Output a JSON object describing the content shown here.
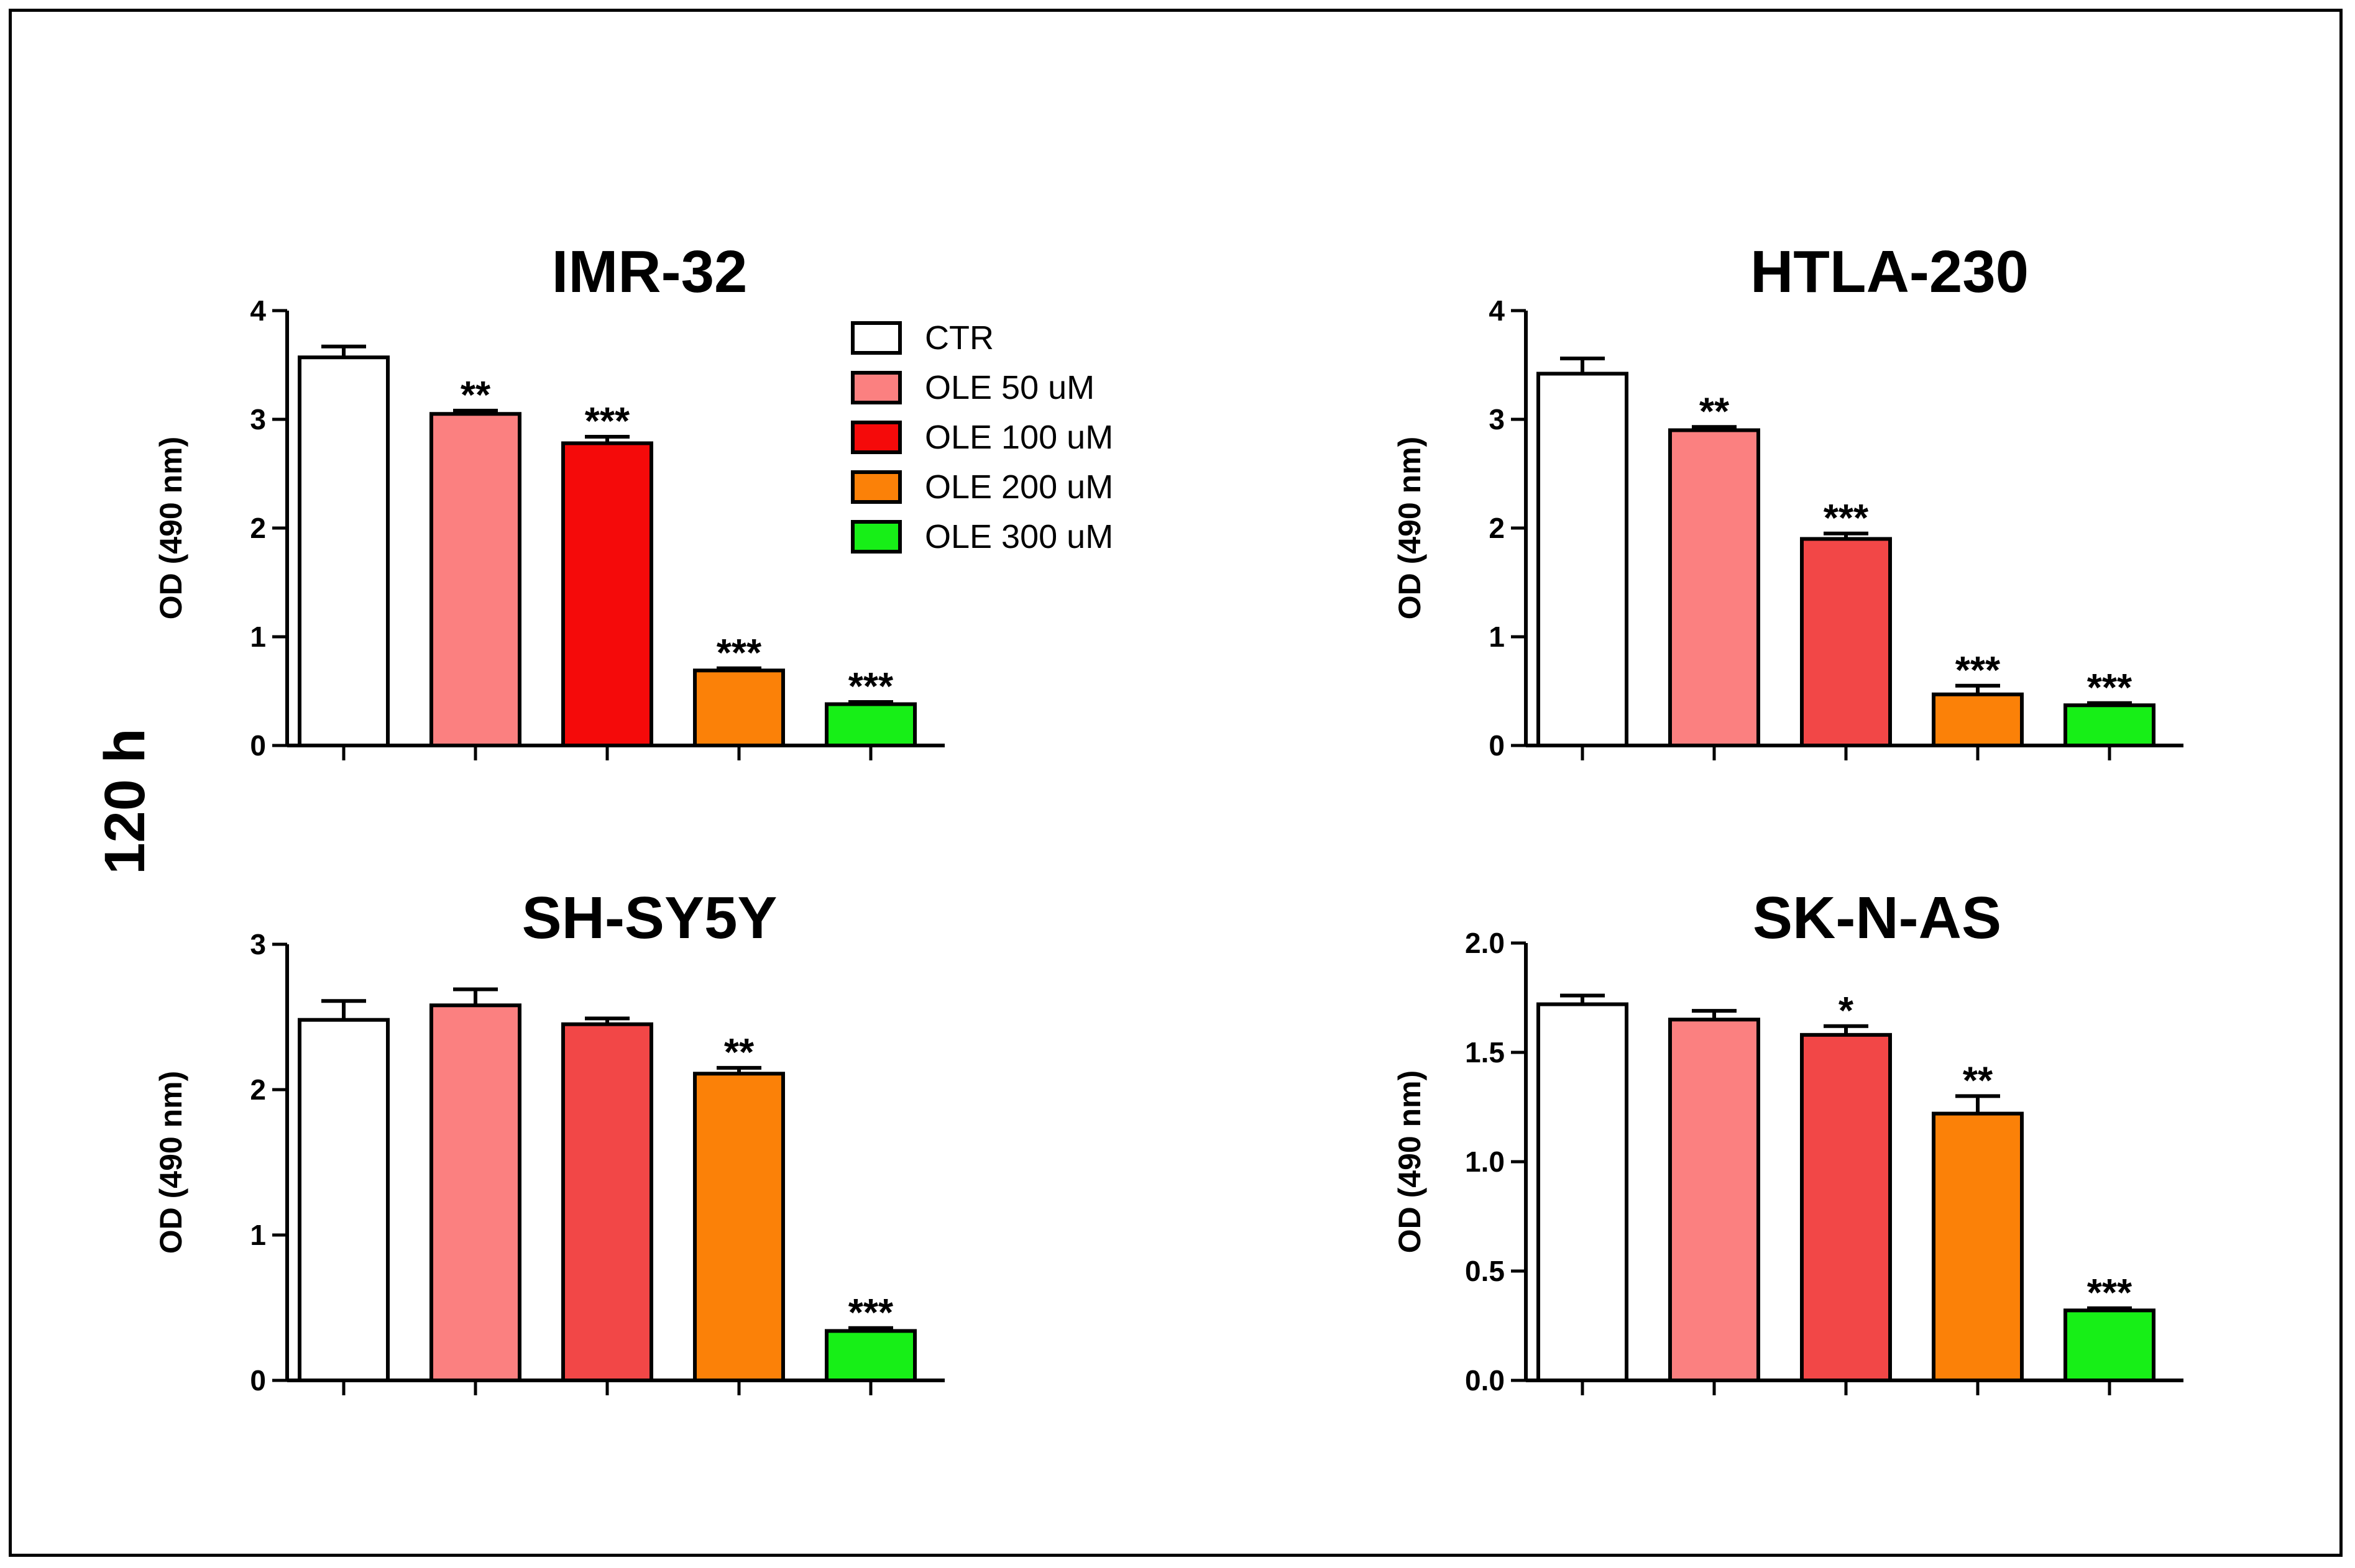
{
  "figure": {
    "side_label": "120 h",
    "legend": [
      {
        "label": "CTR",
        "color": "#ffffff"
      },
      {
        "label": "OLE 50 uM",
        "color": "#fb8080"
      },
      {
        "label": "OLE 100 uM",
        "color": "#f50a0a"
      },
      {
        "label": "OLE 200 uM",
        "color": "#fb8108"
      },
      {
        "label": "OLE 300 uM",
        "color": "#17ef17"
      }
    ]
  },
  "chart_data": [
    {
      "type": "bar",
      "title": "IMR-32",
      "ylabel": "OD (490 nm)",
      "xlabel": "",
      "categories": [
        "CTR",
        "OLE 50 uM",
        "OLE 100 uM",
        "OLE 200 uM",
        "OLE 300 uM"
      ],
      "values": [
        3.57,
        3.05,
        2.78,
        0.69,
        0.38
      ],
      "errors": [
        0.1,
        0.03,
        0.06,
        0.02,
        0.02
      ],
      "significance": [
        "",
        "**",
        "***",
        "***",
        "***"
      ],
      "colors": [
        "#ffffff",
        "#fb8080",
        "#f50a0a",
        "#fb8108",
        "#17ef17"
      ],
      "ylim": [
        0,
        4
      ],
      "yticks": [
        "0",
        "1",
        "2",
        "3",
        "4"
      ]
    },
    {
      "type": "bar",
      "title": "HTLA-230",
      "ylabel": "OD (490 nm)",
      "xlabel": "",
      "categories": [
        "CTR",
        "OLE 50 uM",
        "OLE 100 uM",
        "OLE 200 uM",
        "OLE 300 uM"
      ],
      "values": [
        3.42,
        2.9,
        1.9,
        0.47,
        0.37
      ],
      "errors": [
        0.14,
        0.03,
        0.05,
        0.08,
        0.02
      ],
      "significance": [
        "",
        "**",
        "***",
        "***",
        "***"
      ],
      "colors": [
        "#ffffff",
        "#fb8080",
        "#f24747",
        "#fb8108",
        "#17ef17"
      ],
      "ylim": [
        0,
        4
      ],
      "yticks": [
        "0",
        "1",
        "2",
        "3",
        "4"
      ]
    },
    {
      "type": "bar",
      "title": "SH-SY5Y",
      "ylabel": "OD (490 nm)",
      "xlabel": "",
      "categories": [
        "CTR",
        "OLE 50 uM",
        "OLE 100 uM",
        "OLE 200 uM",
        "OLE 300 uM"
      ],
      "values": [
        2.48,
        2.58,
        2.45,
        2.11,
        0.34
      ],
      "errors": [
        0.13,
        0.11,
        0.04,
        0.04,
        0.02
      ],
      "significance": [
        "",
        "",
        "",
        "**",
        "***"
      ],
      "colors": [
        "#ffffff",
        "#fb8080",
        "#f24747",
        "#fb8108",
        "#17ef17"
      ],
      "ylim": [
        0,
        3
      ],
      "yticks": [
        "0",
        "1",
        "2",
        "3"
      ]
    },
    {
      "type": "bar",
      "title": "SK-N-AS",
      "ylabel": "OD (490 nm)",
      "xlabel": "",
      "categories": [
        "CTR",
        "OLE 50 uM",
        "OLE 100 uM",
        "OLE 200 uM",
        "OLE 300 uM"
      ],
      "values": [
        1.72,
        1.65,
        1.58,
        1.22,
        0.32
      ],
      "errors": [
        0.04,
        0.04,
        0.04,
        0.08,
        0.01
      ],
      "significance": [
        "",
        "",
        "*",
        "**",
        "***"
      ],
      "colors": [
        "#ffffff",
        "#fb8080",
        "#f24747",
        "#fb8108",
        "#17ef17"
      ],
      "ylim": [
        0,
        2
      ],
      "yticks": [
        "0.0",
        "0.5",
        "1.0",
        "1.5",
        "2.0"
      ]
    }
  ]
}
